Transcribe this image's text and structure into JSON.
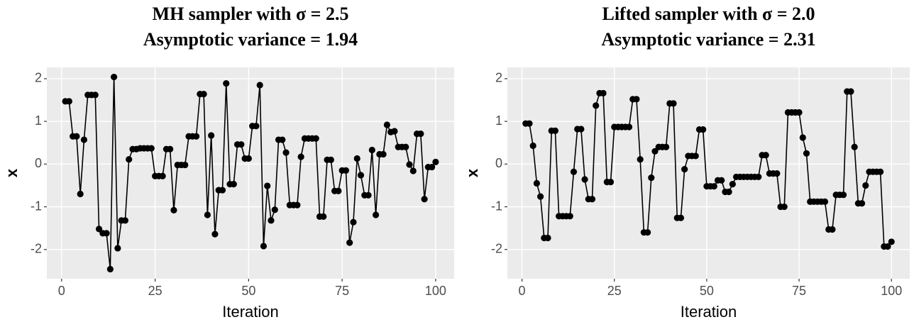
{
  "chart_data": [
    {
      "type": "line",
      "title": "MH sampler with σ = 2.5",
      "subtitle": "Asymptotic variance = 1.94",
      "xlabel": "Iteration",
      "ylabel": "x",
      "x": [
        1,
        2,
        3,
        4,
        5,
        6,
        7,
        8,
        9,
        10,
        11,
        12,
        13,
        14,
        15,
        16,
        17,
        18,
        19,
        20,
        21,
        22,
        23,
        24,
        25,
        26,
        27,
        28,
        29,
        30,
        31,
        32,
        33,
        34,
        35,
        36,
        37,
        38,
        39,
        40,
        41,
        42,
        43,
        44,
        45,
        46,
        47,
        48,
        49,
        50,
        51,
        52,
        53,
        54,
        55,
        56,
        57,
        58,
        59,
        60,
        61,
        62,
        63,
        64,
        65,
        66,
        67,
        68,
        69,
        70,
        71,
        72,
        73,
        74,
        75,
        76,
        77,
        78,
        79,
        80,
        81,
        82,
        83,
        84,
        85,
        86,
        87,
        88,
        89,
        90,
        91,
        92,
        93,
        94,
        95,
        96,
        97,
        98,
        99,
        100
      ],
      "values": [
        1.47,
        1.47,
        0.65,
        0.65,
        -0.7,
        0.57,
        1.62,
        1.62,
        1.62,
        -1.52,
        -1.62,
        -1.62,
        -2.46,
        2.04,
        -1.97,
        -1.32,
        -1.32,
        0.11,
        0.35,
        0.35,
        0.37,
        0.37,
        0.37,
        0.37,
        -0.28,
        -0.28,
        -0.28,
        0.35,
        0.35,
        -1.08,
        -0.02,
        -0.02,
        -0.02,
        0.65,
        0.65,
        0.65,
        1.64,
        1.64,
        -1.19,
        0.67,
        -1.64,
        -0.61,
        -0.61,
        1.89,
        -0.47,
        -0.47,
        0.46,
        0.46,
        0.13,
        0.13,
        0.89,
        0.89,
        1.85,
        -1.92,
        -0.51,
        -1.32,
        -1.07,
        0.57,
        0.57,
        0.27,
        -0.96,
        -0.96,
        -0.96,
        0.17,
        0.6,
        0.6,
        0.6,
        0.6,
        -1.23,
        -1.23,
        0.1,
        0.1,
        -0.63,
        -0.63,
        -0.15,
        -0.15,
        -1.84,
        -1.36,
        0.13,
        -0.26,
        -0.73,
        -0.73,
        0.33,
        -1.19,
        0.23,
        0.23,
        0.92,
        0.75,
        0.77,
        0.4,
        0.4,
        0.4,
        -0.01,
        -0.16,
        0.71,
        0.71,
        -0.82,
        -0.07,
        -0.07,
        0.05
      ],
      "color": "#000000",
      "markers": true,
      "xlim": [
        -3.95,
        104.95
      ],
      "xticks": [
        0,
        25,
        50,
        75,
        100
      ],
      "ylim": [
        -2.685,
        2.265
      ],
      "yticks": [
        -2,
        -1,
        0,
        1,
        2
      ],
      "grid": true
    },
    {
      "type": "line",
      "title": "Lifted sampler with σ = 2.0",
      "subtitle": "Asymptotic variance = 2.31",
      "xlabel": "Iteration",
      "ylabel": "x",
      "x": [
        1,
        2,
        3,
        4,
        5,
        6,
        7,
        8,
        9,
        10,
        11,
        12,
        13,
        14,
        15,
        16,
        17,
        18,
        19,
        20,
        21,
        22,
        23,
        24,
        25,
        26,
        27,
        28,
        29,
        30,
        31,
        32,
        33,
        34,
        35,
        36,
        37,
        38,
        39,
        40,
        41,
        42,
        43,
        44,
        45,
        46,
        47,
        48,
        49,
        50,
        51,
        52,
        53,
        54,
        55,
        56,
        57,
        58,
        59,
        60,
        61,
        62,
        63,
        64,
        65,
        66,
        67,
        68,
        69,
        70,
        71,
        72,
        73,
        74,
        75,
        76,
        77,
        78,
        79,
        80,
        81,
        82,
        83,
        84,
        85,
        86,
        87,
        88,
        89,
        90,
        91,
        92,
        93,
        94,
        95,
        96,
        97,
        98,
        99,
        100
      ],
      "values": [
        0.95,
        0.95,
        0.43,
        -0.45,
        -0.76,
        -1.73,
        -1.73,
        0.78,
        0.78,
        -1.22,
        -1.22,
        -1.22,
        -1.22,
        -0.18,
        0.82,
        0.82,
        -0.36,
        -0.82,
        -0.82,
        1.37,
        1.66,
        1.66,
        -0.42,
        -0.42,
        0.87,
        0.87,
        0.87,
        0.87,
        0.87,
        1.52,
        1.52,
        0.11,
        -1.6,
        -1.6,
        -0.32,
        0.3,
        0.4,
        0.4,
        0.4,
        1.42,
        1.42,
        -1.26,
        -1.26,
        -0.12,
        0.19,
        0.19,
        0.19,
        0.81,
        0.81,
        -0.52,
        -0.52,
        -0.52,
        -0.38,
        -0.38,
        -0.65,
        -0.65,
        -0.47,
        -0.3,
        -0.3,
        -0.3,
        -0.3,
        -0.3,
        -0.3,
        -0.3,
        0.21,
        0.21,
        -0.22,
        -0.22,
        -0.22,
        -1.0,
        -1.0,
        1.21,
        1.21,
        1.21,
        1.21,
        0.62,
        0.25,
        -0.88,
        -0.88,
        -0.88,
        -0.88,
        -0.88,
        -1.53,
        -1.53,
        -0.72,
        -0.72,
        -0.72,
        1.7,
        1.7,
        0.4,
        -0.92,
        -0.92,
        -0.5,
        -0.18,
        -0.18,
        -0.18,
        -0.18,
        -1.93,
        -1.93,
        -1.82
      ],
      "color": "#000000",
      "markers": true,
      "xlim": [
        -3.95,
        104.95
      ],
      "xticks": [
        0,
        25,
        50,
        75,
        100
      ],
      "ylim": [
        -2.685,
        2.265
      ],
      "yticks": [
        -2,
        -1,
        0,
        1,
        2
      ],
      "grid": true
    }
  ]
}
